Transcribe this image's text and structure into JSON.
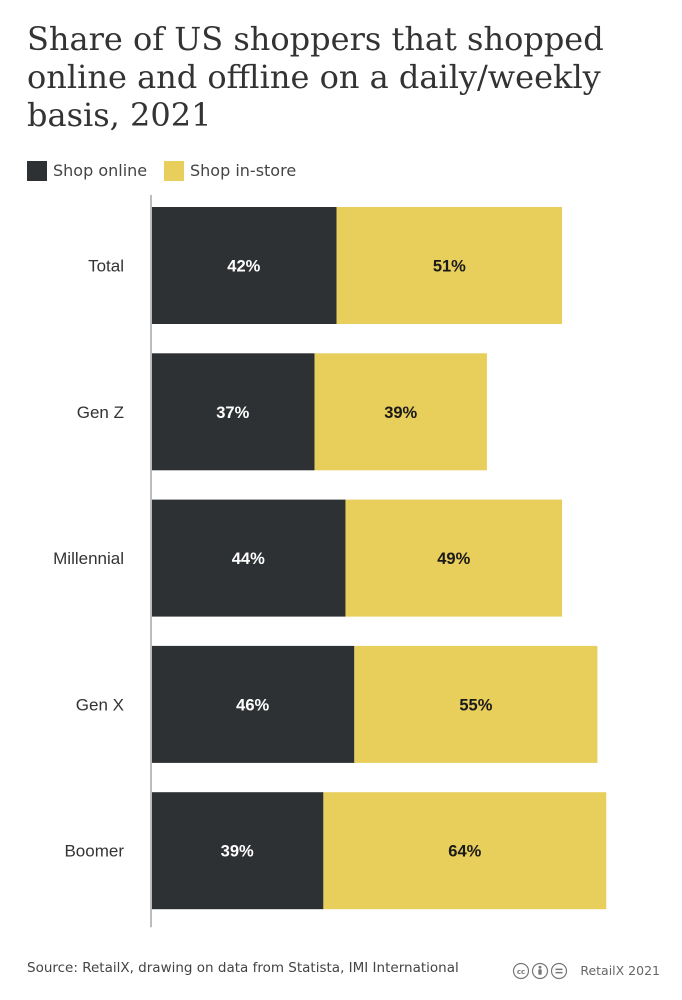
{
  "colors": {
    "online": "#2e3133",
    "instore": "#e8ce5a",
    "axis": "#bdbdbd"
  },
  "chart_data": {
    "type": "bar",
    "orientation": "horizontal",
    "stacked": true,
    "title": "Share of US shoppers that shopped online and offline on a daily/weekly basis, 2021",
    "categories": [
      "Total",
      "Gen Z",
      "Millennial",
      "Gen X",
      "Boomer"
    ],
    "series": [
      {
        "name": "Shop online",
        "values": [
          42,
          37,
          44,
          46,
          39
        ],
        "labels": [
          "42%",
          "37%",
          "44%",
          "46%",
          "39%"
        ]
      },
      {
        "name": "Shop in-store",
        "values": [
          51,
          39,
          49,
          55,
          64
        ],
        "labels": [
          "51%",
          "39%",
          "49%",
          "55%",
          "64%"
        ]
      }
    ],
    "legend_position": "top-left",
    "grid": false
  },
  "footer": {
    "source": "Source: RetailX, drawing on data from Statista, IMI International",
    "credit": "RetailX 2021",
    "license_icons": [
      "cc-icon",
      "attribution-icon",
      "no-derivatives-icon"
    ]
  }
}
